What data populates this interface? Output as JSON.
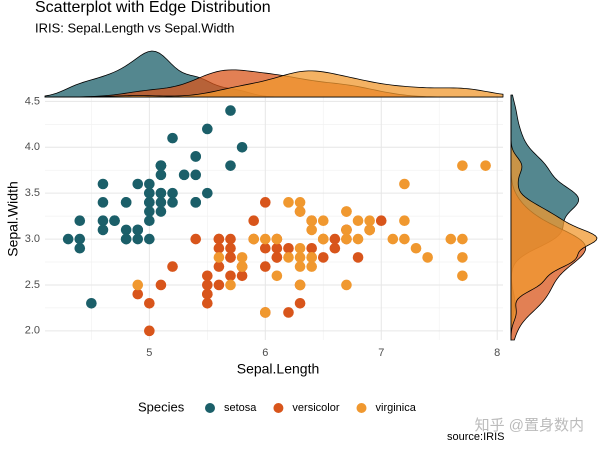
{
  "chart_data": {
    "type": "scatter",
    "title": "Scatterplot with Edge Distribution",
    "subtitle": "IRIS: Sepal.Length vs Sepal.Width",
    "x_label": "Sepal.Length",
    "y_label": "Sepal.Width",
    "legend_title": "Species",
    "caption": "source:IRIS",
    "watermark": "知乎 @置身数内",
    "xlim": [
      4.1,
      8.05
    ],
    "ylim": [
      1.9,
      4.57
    ],
    "xticks": [
      5,
      6,
      7,
      8
    ],
    "yticks": [
      {
        "value": 2,
        "label": "2.0"
      },
      2.5,
      {
        "value": 3,
        "label": "3.0"
      },
      3.5,
      {
        "value": 4,
        "label": "4.0"
      },
      4.5
    ],
    "grid": true,
    "legend": "bottom",
    "marginal": "density",
    "series": [
      {
        "name": "setosa",
        "color": "#1b5f69",
        "x": [
          5.1,
          4.9,
          4.7,
          4.6,
          5.0,
          5.4,
          4.6,
          5.0,
          4.4,
          4.9,
          5.4,
          4.8,
          4.8,
          4.3,
          5.8,
          5.7,
          5.4,
          5.1,
          5.7,
          5.1,
          5.4,
          5.1,
          4.6,
          5.1,
          4.8,
          5.0,
          5.0,
          5.2,
          5.2,
          4.7,
          4.8,
          5.4,
          5.2,
          5.5,
          4.9,
          5.0,
          5.5,
          4.9,
          4.4,
          5.1,
          5.0,
          4.5,
          4.4,
          5.0,
          5.1,
          4.8,
          5.1,
          4.6,
          5.3,
          5.0
        ],
        "y": [
          3.5,
          3.0,
          3.2,
          3.1,
          3.6,
          3.9,
          3.4,
          3.4,
          2.9,
          3.1,
          3.7,
          3.4,
          3.0,
          3.0,
          4.0,
          4.4,
          3.9,
          3.5,
          3.8,
          3.8,
          3.4,
          3.7,
          3.6,
          3.3,
          3.4,
          3.0,
          3.4,
          3.5,
          3.4,
          3.2,
          3.1,
          3.4,
          4.1,
          4.2,
          3.1,
          3.2,
          3.5,
          3.6,
          3.0,
          3.4,
          3.5,
          2.3,
          3.2,
          3.5,
          3.8,
          3.0,
          3.8,
          3.2,
          3.7,
          3.3
        ]
      },
      {
        "name": "versicolor",
        "color": "#d8551b",
        "x": [
          7.0,
          6.4,
          6.9,
          5.5,
          6.5,
          5.7,
          6.3,
          4.9,
          6.6,
          5.2,
          5.0,
          5.9,
          6.0,
          6.1,
          5.6,
          6.7,
          5.6,
          5.8,
          6.2,
          5.6,
          5.9,
          6.1,
          6.3,
          6.1,
          6.4,
          6.6,
          6.8,
          6.7,
          6.0,
          5.7,
          5.5,
          5.5,
          5.8,
          6.0,
          5.4,
          6.0,
          6.7,
          6.3,
          5.6,
          5.5,
          5.5,
          6.1,
          5.8,
          5.0,
          5.6,
          5.7,
          5.7,
          6.2,
          5.1,
          5.7
        ],
        "y": [
          3.2,
          3.2,
          3.1,
          2.3,
          2.8,
          2.8,
          3.3,
          2.4,
          2.9,
          2.7,
          2.0,
          3.0,
          2.2,
          2.9,
          2.9,
          3.1,
          3.0,
          2.7,
          2.2,
          2.5,
          3.2,
          2.8,
          2.5,
          2.8,
          2.9,
          3.0,
          2.8,
          3.0,
          2.9,
          2.6,
          2.4,
          2.4,
          2.7,
          2.7,
          3.0,
          3.4,
          3.1,
          2.3,
          3.0,
          2.5,
          2.6,
          3.0,
          2.6,
          2.3,
          2.7,
          3.0,
          2.9,
          2.9,
          2.5,
          2.8
        ]
      },
      {
        "name": "virginica",
        "color": "#f0982f",
        "x": [
          6.3,
          5.8,
          7.1,
          6.3,
          6.5,
          7.6,
          4.9,
          7.3,
          6.7,
          7.2,
          6.5,
          6.4,
          6.8,
          5.7,
          5.8,
          6.4,
          6.5,
          7.7,
          7.7,
          6.0,
          6.9,
          5.6,
          7.7,
          6.3,
          6.7,
          7.2,
          6.2,
          6.1,
          6.4,
          7.2,
          7.4,
          7.9,
          6.4,
          6.3,
          6.1,
          7.7,
          6.3,
          6.4,
          6.0,
          6.9,
          6.7,
          6.9,
          5.8,
          6.8,
          6.7,
          6.7,
          6.3,
          6.5,
          6.2,
          5.9
        ],
        "y": [
          3.3,
          2.7,
          3.0,
          2.9,
          3.0,
          3.0,
          2.5,
          2.9,
          2.5,
          3.6,
          3.2,
          2.7,
          3.0,
          2.5,
          2.8,
          3.2,
          3.0,
          3.8,
          2.6,
          2.2,
          3.2,
          2.8,
          2.8,
          2.7,
          3.3,
          3.2,
          2.8,
          3.0,
          2.8,
          3.0,
          2.8,
          3.8,
          2.8,
          2.8,
          2.6,
          3.0,
          3.4,
          3.1,
          3.0,
          3.1,
          3.1,
          3.1,
          2.7,
          3.2,
          3.3,
          3.0,
          2.5,
          3.0,
          3.4,
          3.0
        ]
      }
    ]
  }
}
